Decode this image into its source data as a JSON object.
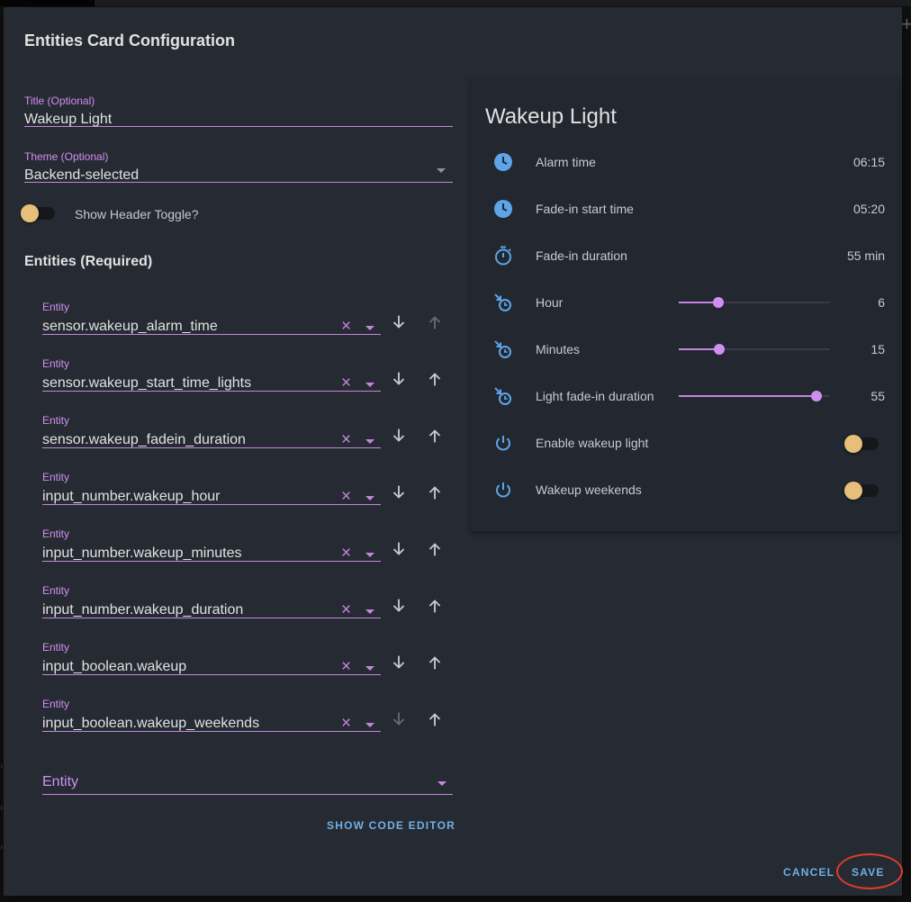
{
  "dialog": {
    "title": "Entities Card Configuration",
    "title_field": {
      "label": "Title (Optional)",
      "value": "Wakeup Light"
    },
    "theme_field": {
      "label": "Theme (Optional)",
      "value": "Backend-selected"
    },
    "header_toggle_label": "Show Header Toggle?",
    "entities_heading": "Entities (Required)",
    "entity_label": "Entity",
    "entities": [
      {
        "value": "sensor.wakeup_alarm_time",
        "down_enabled": true,
        "up_enabled": false
      },
      {
        "value": "sensor.wakeup_start_time_lights",
        "down_enabled": true,
        "up_enabled": true
      },
      {
        "value": "sensor.wakeup_fadein_duration",
        "down_enabled": true,
        "up_enabled": true
      },
      {
        "value": "input_number.wakeup_hour",
        "down_enabled": true,
        "up_enabled": true
      },
      {
        "value": "input_number.wakeup_minutes",
        "down_enabled": true,
        "up_enabled": true
      },
      {
        "value": "input_number.wakeup_duration",
        "down_enabled": true,
        "up_enabled": true
      },
      {
        "value": "input_boolean.wakeup",
        "down_enabled": true,
        "up_enabled": true
      },
      {
        "value": "input_boolean.wakeup_weekends",
        "down_enabled": false,
        "up_enabled": true
      }
    ],
    "add_entity_placeholder": "Entity",
    "show_code_editor": "SHOW CODE EDITOR",
    "cancel": "CANCEL",
    "save": "SAVE"
  },
  "preview": {
    "title": "Wakeup Light",
    "rows": [
      {
        "icon": "clock-icon",
        "name": "Alarm time",
        "state": "06:15"
      },
      {
        "icon": "clock-icon",
        "name": "Fade-in start time",
        "state": "05:20"
      },
      {
        "icon": "timer-icon",
        "name": "Fade-in duration",
        "state": "55 min"
      },
      {
        "icon": "alarm-arrow-icon",
        "name": "Hour",
        "state": "6",
        "slider_fraction": 0.26
      },
      {
        "icon": "alarm-arrow-icon",
        "name": "Minutes",
        "state": "15",
        "slider_fraction": 0.27
      },
      {
        "icon": "alarm-arrow-icon",
        "name": "Light fade-in duration",
        "state": "55",
        "slider_fraction": 0.91
      },
      {
        "icon": "power-icon",
        "name": "Enable wakeup light",
        "switch_on": false
      },
      {
        "icon": "power-icon",
        "name": "Wakeup weekends",
        "switch_on": false
      }
    ]
  },
  "colors": {
    "accent": "#c685dd",
    "icon_blue": "#5da5e8",
    "switch_knob": "#e6c07b",
    "button_blue": "#6fb0e6",
    "highlight_ring": "#e13c2b"
  }
}
